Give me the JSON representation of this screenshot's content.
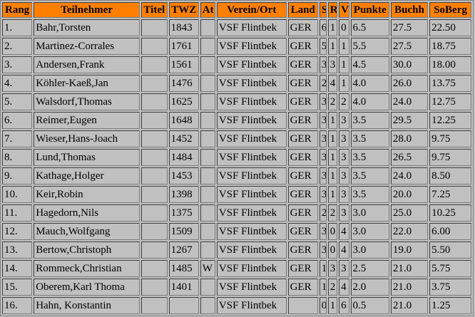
{
  "headers": [
    "Rang",
    "Teilnehmer",
    "Titel",
    "TWZ",
    "At",
    "Verein/Ort",
    "Land",
    "S",
    "R",
    "V",
    "Punkte",
    "Buchh",
    "SoBerg"
  ],
  "header_color": "#ff8000",
  "rows": [
    [
      "1.",
      "Bahr,Torsten",
      "",
      "1843",
      "",
      "VSF Flintbek",
      "GER",
      "6",
      "1",
      "0",
      "6.5",
      "27.5",
      "22.50"
    ],
    [
      "2.",
      "Martinez-Corrales",
      "",
      "1761",
      "",
      "VSF Flintbek",
      "GER",
      "5",
      "1",
      "1",
      "5.5",
      "27.5",
      "18.75"
    ],
    [
      "3.",
      "Andersen,Frank",
      "",
      "1561",
      "",
      "VSF Flintbek",
      "GER",
      "3",
      "3",
      "1",
      "4.5",
      "30.0",
      "18.00"
    ],
    [
      "4.",
      "Köhler-Kaeß,Jan",
      "",
      "1476",
      "",
      "VSF Flintbek",
      "GER",
      "2",
      "4",
      "1",
      "4.0",
      "26.0",
      "13.75"
    ],
    [
      "5.",
      "Walsdorf,Thomas",
      "",
      "1625",
      "",
      "VSF Flintbek",
      "GER",
      "3",
      "2",
      "2",
      "4.0",
      "24.0",
      "12.75"
    ],
    [
      "6.",
      "Reimer,Eugen",
      "",
      "1648",
      "",
      "VSF Flintbek",
      "GER",
      "3",
      "1",
      "3",
      "3.5",
      "29.5",
      "12.25"
    ],
    [
      "7.",
      "Wieser,Hans-Joach",
      "",
      "1452",
      "",
      "VSF Flintbek",
      "GER",
      "3",
      "1",
      "3",
      "3.5",
      "28.0",
      "9.75"
    ],
    [
      "8.",
      "Lund,Thomas",
      "",
      "1484",
      "",
      "VSF Flintbek",
      "GER",
      "3",
      "1",
      "3",
      "3.5",
      "26.5",
      "9.75"
    ],
    [
      "9.",
      "Kathage,Holger",
      "",
      "1453",
      "",
      "VSF Flintbek",
      "GER",
      "3",
      "1",
      "3",
      "3.5",
      "24.0",
      "8.50"
    ],
    [
      "10.",
      "Keir,Robin",
      "",
      "1398",
      "",
      "VSF Flintbek",
      "GER",
      "3",
      "1",
      "3",
      "3.5",
      "20.0",
      "7.25"
    ],
    [
      "11.",
      "Hagedorn,Nils",
      "",
      "1375",
      "",
      "VSF Flintbek",
      "GER",
      "2",
      "2",
      "3",
      "3.0",
      "25.0",
      "10.25"
    ],
    [
      "12.",
      "Mauch,Wolfgang",
      "",
      "1509",
      "",
      "VSF Flintbek",
      "GER",
      "3",
      "0",
      "4",
      "3.0",
      "22.0",
      "6.00"
    ],
    [
      "13.",
      "Bertow,Christoph",
      "",
      "1267",
      "",
      "VSF Flintbek",
      "GER",
      "3",
      "0",
      "4",
      "3.0",
      "19.0",
      "5.50"
    ],
    [
      "14.",
      "Rommeck,Christian",
      "",
      "1485",
      "W",
      "VSF Flintbek",
      "GER",
      "1",
      "3",
      "3",
      "2.5",
      "21.0",
      "5.75"
    ],
    [
      "15.",
      "Oberem,Karl Thoma",
      "",
      "1401",
      "",
      "VSF Flintbek",
      "GER",
      "1",
      "2",
      "4",
      "2.0",
      "21.0",
      "3.75"
    ],
    [
      "16.",
      "Hahn, Konstantin",
      "",
      "",
      "",
      "VSF Flintbek",
      "",
      "0",
      "1",
      "6",
      "0.5",
      "21.0",
      "1.25"
    ]
  ]
}
